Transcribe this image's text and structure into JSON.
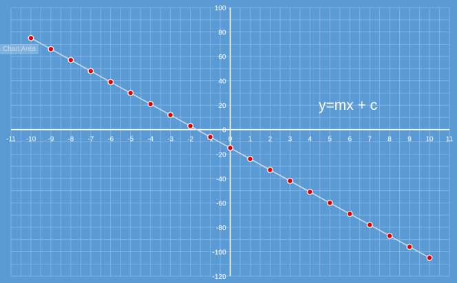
{
  "tooltip": "Chart Area",
  "chart_data": {
    "type": "scatter",
    "annotation": "y=mx + c",
    "x": [
      -10,
      -9,
      -8,
      -7,
      -6,
      -5,
      -4,
      -3,
      -2,
      -1,
      0,
      1,
      2,
      3,
      4,
      5,
      6,
      7,
      8,
      9,
      10
    ],
    "y": [
      75,
      66,
      57,
      48,
      39,
      30,
      21,
      12,
      3,
      -6,
      -15,
      -24,
      -33,
      -42,
      -51,
      -60,
      -69,
      -78,
      -87,
      -96,
      -105
    ],
    "xlim": [
      -11,
      11
    ],
    "ylim": [
      -120,
      100
    ],
    "x_ticks": [
      -11,
      -10,
      -9,
      -8,
      -7,
      -6,
      -5,
      -4,
      -3,
      -2,
      -1,
      0,
      1,
      2,
      3,
      4,
      5,
      6,
      7,
      8,
      9,
      10,
      11
    ],
    "y_ticks": [
      100,
      80,
      60,
      40,
      20,
      0,
      -20,
      -40,
      -60,
      -80,
      -100,
      -120
    ],
    "grid": true,
    "line": true,
    "colors": {
      "background": "#5b9bd5",
      "grid": "#8db9e6",
      "axis": "#ffffff",
      "line": "#c9d9ea",
      "marker_fill": "#e00000",
      "marker_stroke": "#ffffff",
      "text": "#ffffff"
    }
  }
}
